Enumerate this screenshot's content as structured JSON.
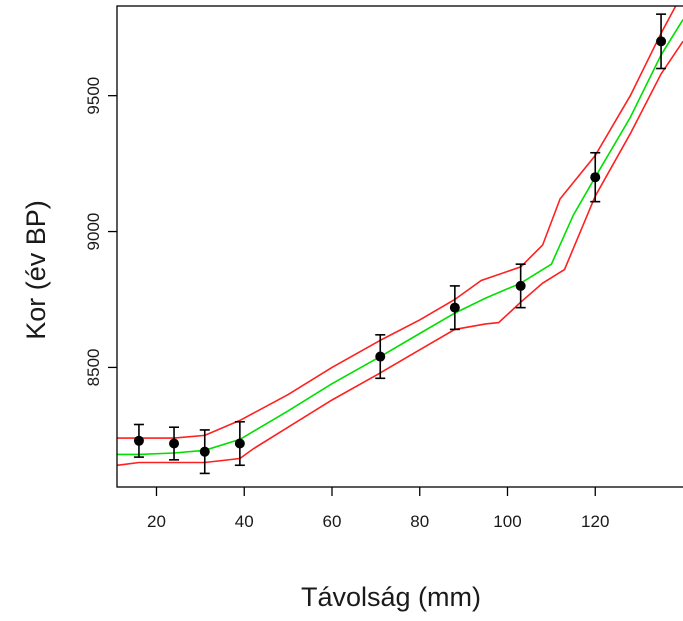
{
  "chart_data": {
    "type": "scatter",
    "title": "",
    "xlabel": "Távolság (mm)",
    "ylabel": "Kor (év BP)",
    "xlim": [
      11,
      140
    ],
    "ylim": [
      8060,
      9830
    ],
    "x_ticks": [
      20,
      40,
      60,
      80,
      100,
      120
    ],
    "y_ticks": [
      8500,
      9000,
      9500
    ],
    "grid": false,
    "legend": "none",
    "points": [
      {
        "x": 16,
        "y": 8230,
        "err": 60
      },
      {
        "x": 24,
        "y": 8220,
        "err": 60
      },
      {
        "x": 31,
        "y": 8190,
        "err": 80
      },
      {
        "x": 39,
        "y": 8220,
        "err": 80
      },
      {
        "x": 71,
        "y": 8540,
        "err": 80
      },
      {
        "x": 88,
        "y": 8720,
        "err": 80
      },
      {
        "x": 103,
        "y": 8800,
        "err": 80
      },
      {
        "x": 120,
        "y": 9200,
        "err": 90
      },
      {
        "x": 135,
        "y": 9700,
        "err": 100
      }
    ],
    "series": [
      {
        "color": "#00e000",
        "x": [
          11,
          16,
          24,
          31,
          39,
          50,
          60,
          71,
          80,
          88,
          95,
          103,
          110,
          115,
          120,
          128,
          135,
          140
        ],
        "y": [
          8180,
          8180,
          8185,
          8195,
          8235,
          8340,
          8440,
          8540,
          8625,
          8700,
          8755,
          8810,
          8880,
          9060,
          9200,
          9420,
          9650,
          9780
        ]
      },
      {
        "color": "#ff2020",
        "x": [
          11,
          16,
          24,
          31,
          39,
          50,
          60,
          71,
          80,
          88,
          94,
          103,
          108,
          112,
          120,
          128,
          135,
          140
        ],
        "y": [
          8240,
          8240,
          8240,
          8250,
          8305,
          8400,
          8500,
          8600,
          8675,
          8750,
          8820,
          8870,
          8950,
          9120,
          9280,
          9500,
          9730,
          9880
        ]
      },
      {
        "color": "#ff2020",
        "x": [
          11,
          16,
          24,
          31,
          39,
          42,
          50,
          60,
          71,
          80,
          88,
          95,
          98,
          103,
          108,
          113,
          120,
          128,
          135,
          140
        ],
        "y": [
          8140,
          8150,
          8150,
          8150,
          8165,
          8200,
          8280,
          8380,
          8480,
          8565,
          8640,
          8660,
          8665,
          8740,
          8810,
          8860,
          9130,
          9360,
          9580,
          9700
        ]
      }
    ],
    "colors": {
      "points": "#000000",
      "axis": "#000000"
    }
  }
}
